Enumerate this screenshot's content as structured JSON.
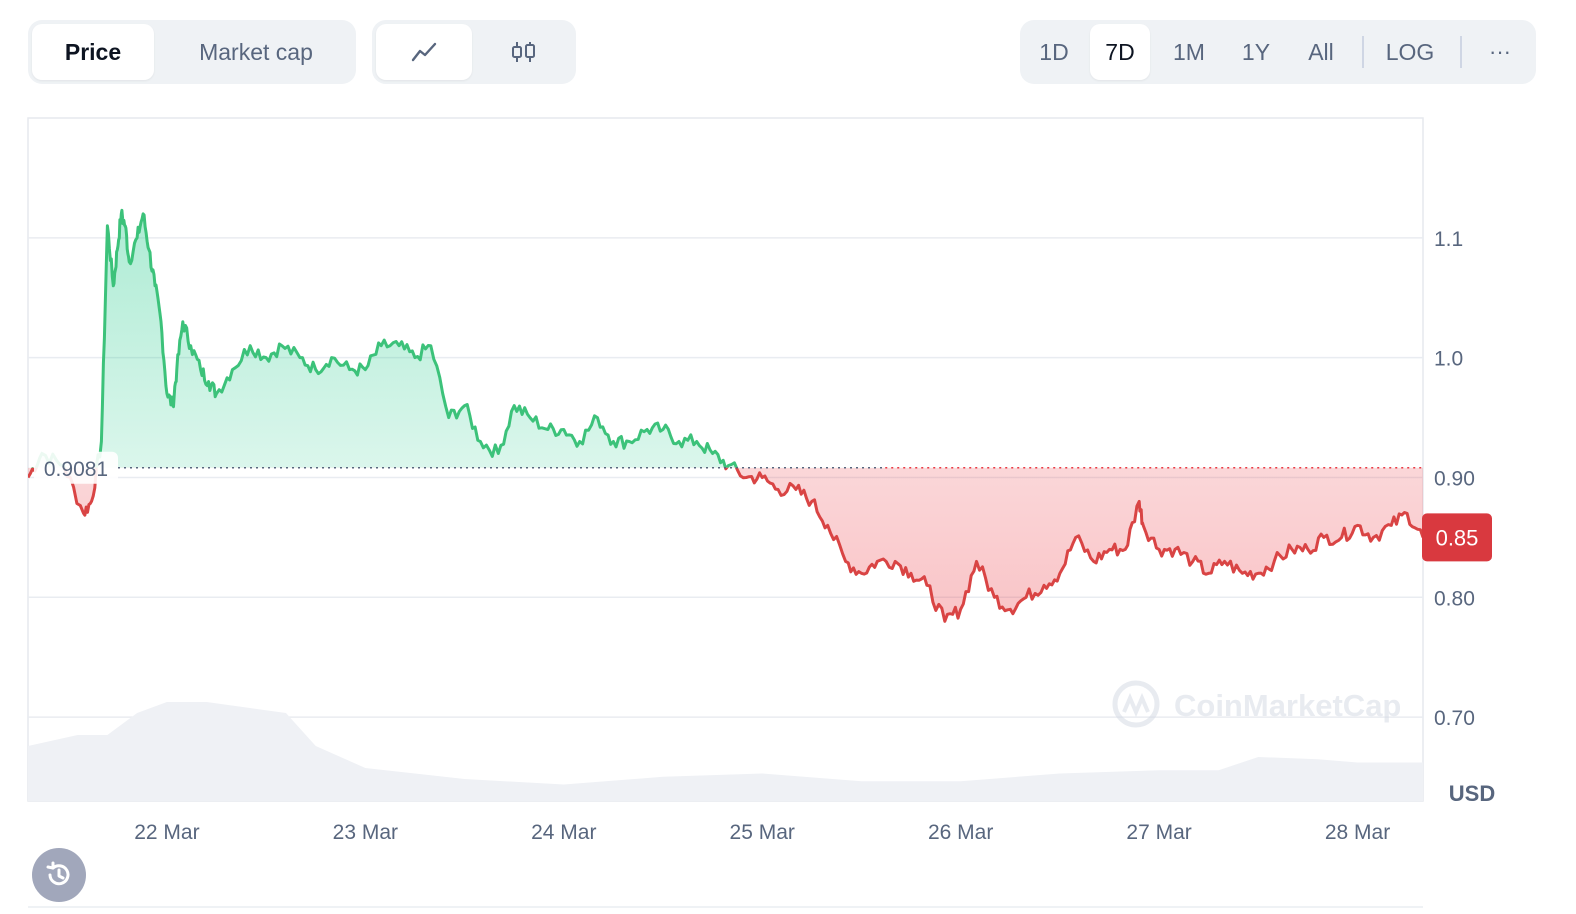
{
  "toggle": {
    "price_label": "Price",
    "market_cap_label": "Market cap"
  },
  "chart_modes": {
    "line_icon": "line-chart-icon",
    "candle_icon": "candlestick-icon"
  },
  "ranges": {
    "items": [
      "1D",
      "7D",
      "1M",
      "1Y",
      "All"
    ],
    "active": "7D",
    "log_label": "LOG",
    "more_label": "···"
  },
  "watermark": "CoinMarketCap",
  "currency_label": "USD",
  "reference_price_label": "0.9081",
  "current_price_label": "0.85",
  "colors": {
    "up": "#16c784",
    "up_line": "#3cc27a",
    "down": "#ea3943",
    "down_line": "#d94444",
    "current_badge": "#d9393f"
  },
  "chart_data": {
    "type": "area",
    "x_tick_labels": [
      "22 Mar",
      "23 Mar",
      "24 Mar",
      "25 Mar",
      "26 Mar",
      "27 Mar",
      "28 Mar"
    ],
    "y_tick_labels": [
      "1.1",
      "1.0",
      "0.90",
      "0.80",
      "0.70"
    ],
    "y_ticks": [
      1.1,
      1.0,
      0.9,
      0.8,
      0.7
    ],
    "ylim": [
      0.63,
      1.2
    ],
    "xlim": [
      -0.7,
      6.33
    ],
    "reference_price": 0.9081,
    "current_price": 0.85,
    "currency": "USD",
    "grid": true,
    "price_series": {
      "x": [
        -0.7,
        -0.63,
        -0.52,
        -0.42,
        -0.38,
        -0.33,
        -0.3,
        -0.27,
        -0.25,
        -0.23,
        -0.21,
        -0.19,
        -0.15,
        -0.12,
        -0.09,
        -0.06,
        -0.03,
        0.0,
        0.03,
        0.05,
        0.08,
        0.12,
        0.17,
        0.21,
        0.25,
        0.33,
        0.42,
        0.5,
        0.58,
        0.67,
        0.75,
        0.83,
        0.92,
        1.0,
        1.08,
        1.17,
        1.25,
        1.33,
        1.42,
        1.5,
        1.58,
        1.67,
        1.75,
        1.83,
        1.92,
        2.0,
        2.08,
        2.17,
        2.25,
        2.33,
        2.42,
        2.5,
        2.58,
        2.67,
        2.75,
        2.83,
        2.92,
        3.0,
        3.08,
        3.17,
        3.25,
        3.33,
        3.42,
        3.5,
        3.58,
        3.67,
        3.75,
        3.83,
        3.92,
        4.0,
        4.08,
        4.17,
        4.25,
        4.33,
        4.42,
        4.5,
        4.58,
        4.67,
        4.75,
        4.83,
        4.9,
        4.92,
        5.0,
        5.08,
        5.17,
        5.25,
        5.33,
        5.42,
        5.5,
        5.58,
        5.67,
        5.75,
        5.83,
        5.92,
        6.0,
        6.08,
        6.17,
        6.25,
        6.33
      ],
      "y": [
        0.9,
        0.92,
        0.91,
        0.87,
        0.88,
        0.93,
        1.11,
        1.06,
        1.09,
        1.12,
        1.11,
        1.08,
        1.1,
        1.12,
        1.09,
        1.06,
        1.03,
        0.97,
        0.96,
        0.99,
        1.03,
        1.01,
        0.99,
        0.98,
        0.97,
        0.99,
        1.01,
        1.0,
        1.01,
        1.0,
        0.99,
        1.0,
        0.99,
        0.99,
        1.01,
        1.01,
        1.0,
        1.01,
        0.95,
        0.96,
        0.93,
        0.92,
        0.96,
        0.95,
        0.94,
        0.94,
        0.93,
        0.95,
        0.93,
        0.93,
        0.94,
        0.94,
        0.93,
        0.93,
        0.92,
        0.91,
        0.9,
        0.9,
        0.89,
        0.89,
        0.88,
        0.86,
        0.83,
        0.82,
        0.83,
        0.83,
        0.82,
        0.81,
        0.78,
        0.79,
        0.83,
        0.8,
        0.79,
        0.8,
        0.81,
        0.82,
        0.85,
        0.83,
        0.84,
        0.84,
        0.88,
        0.86,
        0.84,
        0.84,
        0.83,
        0.82,
        0.83,
        0.82,
        0.82,
        0.83,
        0.84,
        0.84,
        0.85,
        0.85,
        0.86,
        0.85,
        0.86,
        0.87,
        0.85
      ]
    },
    "volume_series": {
      "x": [
        -0.7,
        -0.45,
        -0.3,
        -0.15,
        0.0,
        0.2,
        0.4,
        0.6,
        0.75,
        1.0,
        1.5,
        2.0,
        2.5,
        3.0,
        3.5,
        4.0,
        4.5,
        5.0,
        5.3,
        5.5,
        5.8,
        6.0,
        6.33
      ],
      "y": [
        0.05,
        0.06,
        0.06,
        0.08,
        0.09,
        0.09,
        0.085,
        0.08,
        0.05,
        0.03,
        0.02,
        0.015,
        0.022,
        0.025,
        0.018,
        0.018,
        0.025,
        0.028,
        0.028,
        0.04,
        0.038,
        0.035,
        0.035
      ]
    }
  }
}
